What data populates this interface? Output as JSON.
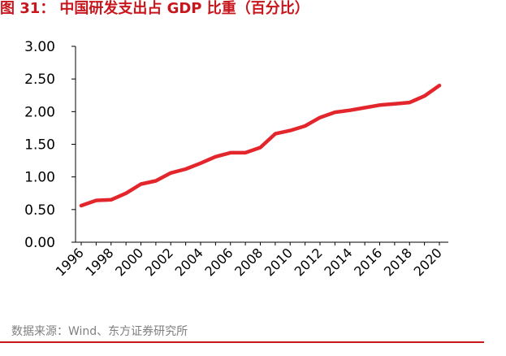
{
  "figure": {
    "label": "图 31：",
    "title": "中国研发支出占 GDP 比重（百分比）"
  },
  "source": "数据来源：Wind、东方证券研究所",
  "colors": {
    "accent": "#c8161d",
    "line": "#e3262b",
    "axis": "#000000",
    "source": "#7f7f7f"
  },
  "chart_data": {
    "type": "line",
    "title": "中国研发支出占 GDP 比重（百分比）",
    "xlabel": "",
    "ylabel": "",
    "ylim": [
      0,
      3
    ],
    "yticks": [
      "0.00",
      "0.50",
      "1.00",
      "1.50",
      "2.00",
      "2.50",
      "3.00"
    ],
    "xticks": [
      "1996",
      "1998",
      "2000",
      "2002",
      "2004",
      "2006",
      "2008",
      "2010",
      "2012",
      "2014",
      "2016",
      "2018",
      "2020"
    ],
    "grid": false,
    "legend": "none",
    "x": [
      1996,
      1997,
      1998,
      1999,
      2000,
      2001,
      2002,
      2003,
      2004,
      2005,
      2006,
      2007,
      2008,
      2009,
      2010,
      2011,
      2012,
      2013,
      2014,
      2015,
      2016,
      2017,
      2018,
      2019,
      2020
    ],
    "series": [
      {
        "values": [
          0.56,
          0.64,
          0.65,
          0.75,
          0.89,
          0.94,
          1.06,
          1.12,
          1.21,
          1.31,
          1.37,
          1.37,
          1.45,
          1.66,
          1.71,
          1.78,
          1.91,
          1.99,
          2.02,
          2.06,
          2.1,
          2.12,
          2.14,
          2.24,
          2.4
        ]
      }
    ]
  }
}
